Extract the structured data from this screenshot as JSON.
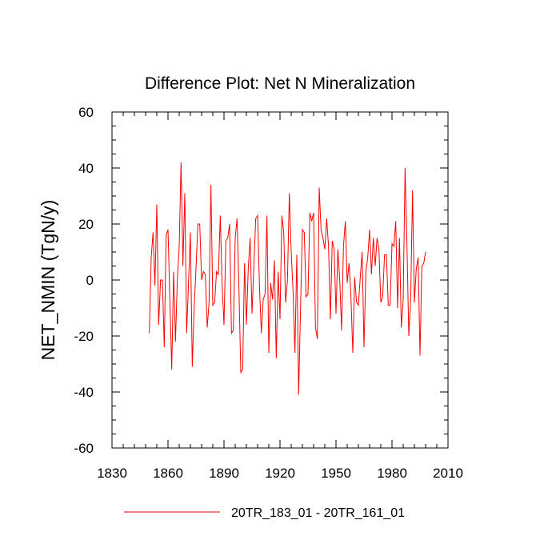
{
  "chart_data": {
    "type": "line",
    "title": "Difference Plot: Net N Mineralization",
    "xlabel": "",
    "ylabel": "NET_NMIN  (TgN/y)",
    "xlim": [
      1830,
      2010
    ],
    "ylim": [
      -60,
      60
    ],
    "xticks": [
      1830,
      1860,
      1890,
      1920,
      1950,
      1980,
      2010
    ],
    "yticks": [
      -60,
      -40,
      -20,
      0,
      20,
      40,
      60
    ],
    "x_minor_step": 6,
    "y_minor_step": 5,
    "grid": false,
    "legend_position": "bottom-center",
    "series": [
      {
        "name": "20TR_183_01 - 20TR_161_01",
        "color": "#ff0000",
        "x_start": 1850,
        "x_step": 1,
        "values": [
          -19,
          8,
          17,
          -2,
          27,
          -16,
          0,
          0,
          -24,
          16,
          18,
          -7,
          -32,
          3,
          -22,
          0,
          12,
          42,
          5,
          31,
          -19,
          -1,
          17,
          -31,
          -10,
          4,
          20,
          20,
          0,
          3,
          2,
          -17,
          -8,
          34,
          -9,
          -8,
          3,
          2,
          23,
          -2,
          -16,
          14,
          15,
          20,
          -19,
          -18,
          15,
          22,
          -3,
          -33,
          -32,
          6,
          -16,
          4,
          15,
          -12,
          5,
          22,
          23,
          -2,
          -19,
          -7,
          -5,
          23,
          -26,
          -1,
          -7,
          7,
          -28,
          3,
          -14,
          23,
          17,
          -8,
          0,
          31,
          10,
          -4,
          -26,
          9,
          -41,
          -10,
          18,
          17,
          -6,
          -5,
          24,
          21,
          24,
          -17,
          -21,
          33,
          18,
          15,
          11,
          22,
          12,
          -14,
          14,
          11,
          -12,
          11,
          0,
          -18,
          12,
          21,
          -1,
          6,
          -6,
          -26,
          1,
          -8,
          -9,
          1,
          10,
          -24,
          3,
          8,
          18,
          2,
          15,
          5,
          15,
          11,
          -8,
          -6,
          9,
          9,
          -9,
          -9,
          13,
          12,
          21,
          -10,
          15,
          -17,
          -7,
          40,
          13,
          -20,
          -7,
          32,
          -8,
          4,
          8,
          -27,
          5,
          6,
          10
        ]
      }
    ]
  }
}
